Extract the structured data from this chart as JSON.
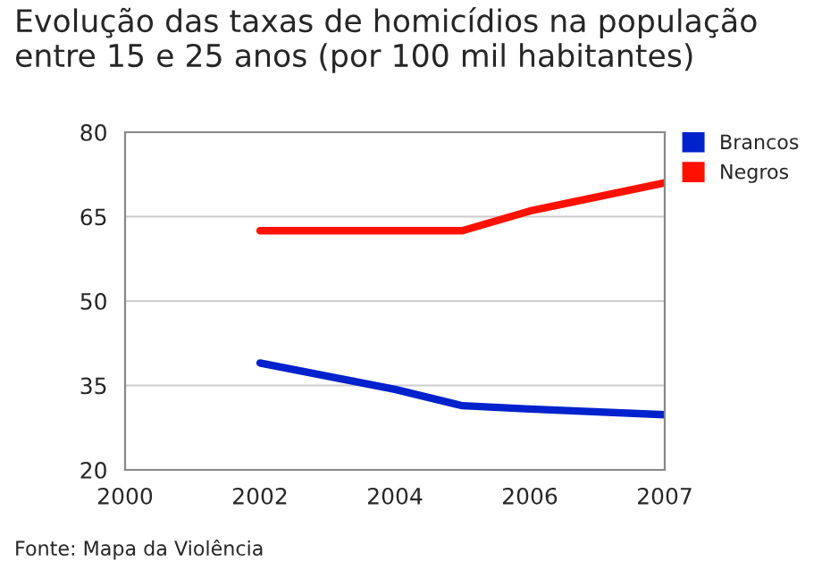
{
  "chart_data": {
    "type": "line",
    "title": "Evolução das taxas de homicídios na população\nentre 15 e 25 anos (por 100 mil habitantes)",
    "categories": [
      "2000",
      null,
      "2002",
      null,
      "2004",
      null,
      "2006",
      null,
      "2007"
    ],
    "series": [
      {
        "name": "Brancos",
        "color": "#0022cc",
        "values": [
          null,
          null,
          39,
          null,
          34.3,
          31.4,
          30.8,
          null,
          29.8
        ]
      },
      {
        "name": "Negros",
        "color": "#ff1100",
        "values": [
          null,
          null,
          62.5,
          null,
          62.5,
          62.5,
          66,
          null,
          71
        ]
      }
    ],
    "ylim": [
      20,
      80
    ],
    "yticks": [
      20,
      35,
      50,
      65,
      80
    ],
    "grid": "y",
    "legend": "top right",
    "marker": "none",
    "line_style": "solid",
    "annotations": [
      "Fonte: Mapa da Violência"
    ]
  }
}
